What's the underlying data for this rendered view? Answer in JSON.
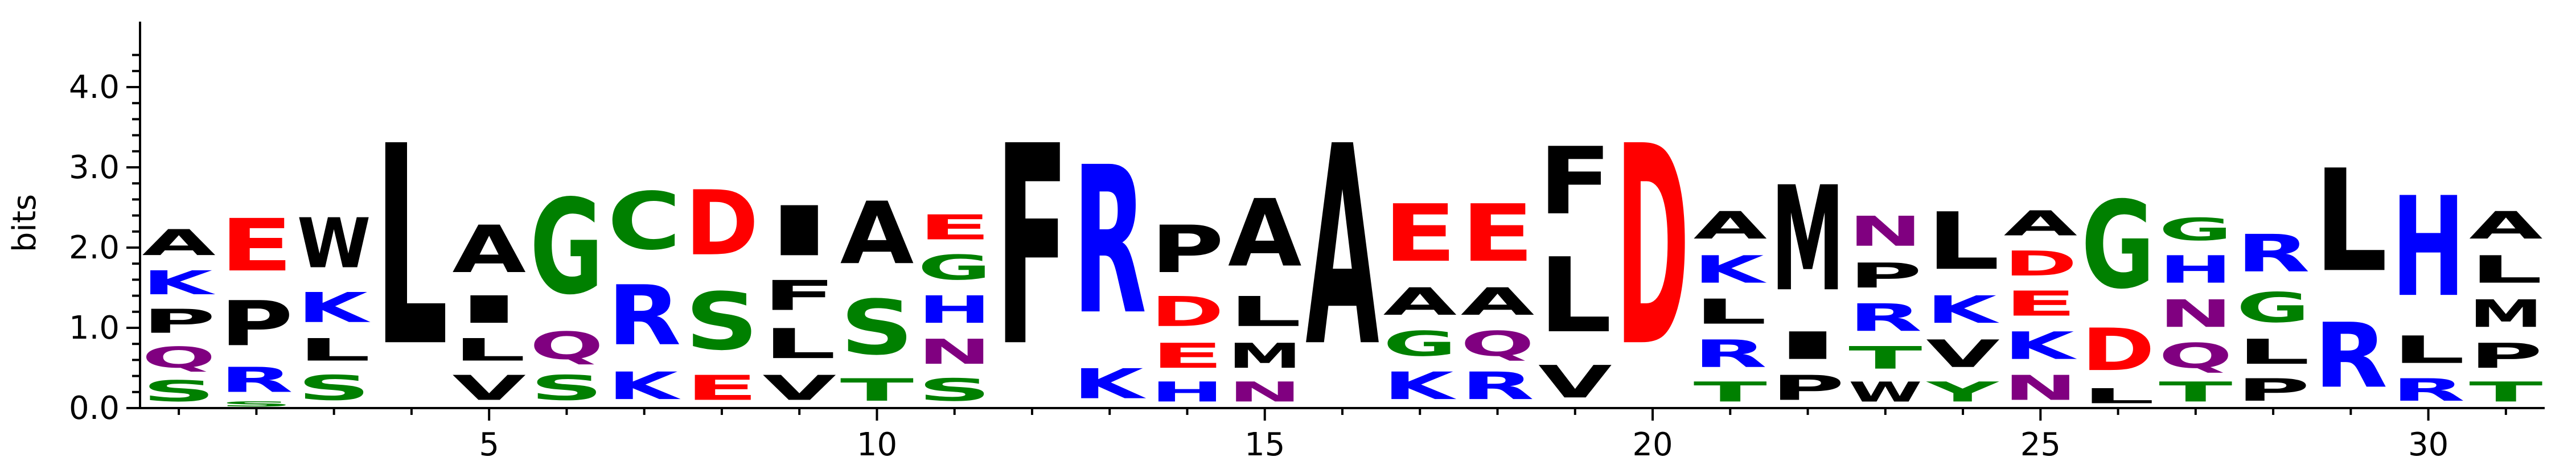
{
  "chart_data": {
    "type": "sequence-logo",
    "ylabel": "bits",
    "ylim": [
      0,
      4.4
    ],
    "xlim": [
      0.5,
      31.5
    ],
    "y_ticks": [
      0.0,
      1.0,
      2.0,
      3.0,
      4.0
    ],
    "y_tick_labels": [
      "0.0",
      "1.0",
      "2.0",
      "3.0",
      "4.0"
    ],
    "x_ticks": [
      5,
      10,
      15,
      20,
      25,
      30
    ],
    "x_tick_labels": [
      "5",
      "10",
      "15",
      "20",
      "25",
      "30"
    ],
    "colors": {
      "A": "#000000",
      "C": "#008000",
      "D": "#ff0000",
      "E": "#ff0000",
      "F": "#000000",
      "G": "#008000",
      "H": "#0000ff",
      "I": "#000000",
      "K": "#0000ff",
      "L": "#000000",
      "M": "#000000",
      "N": "#800080",
      "P": "#000000",
      "Q": "#800080",
      "R": "#0000ff",
      "S": "#008000",
      "T": "#008000",
      "V": "#000000",
      "W": "#000000",
      "Y": "#008000"
    },
    "positions": [
      {
        "position": 1,
        "stack": [
          {
            "letter": "S",
            "height": 0.42
          },
          {
            "letter": "Q",
            "height": 0.42
          },
          {
            "letter": "P",
            "height": 0.48
          },
          {
            "letter": "K",
            "height": 0.48
          },
          {
            "letter": "A",
            "height": 0.52
          }
        ]
      },
      {
        "position": 2,
        "stack": [
          {
            "letter": "S",
            "height": 0.1
          },
          {
            "letter": "R",
            "height": 0.5
          },
          {
            "letter": "P",
            "height": 0.9
          },
          {
            "letter": "E",
            "height": 1.05
          }
        ]
      },
      {
        "position": 3,
        "stack": [
          {
            "letter": "S",
            "height": 0.5
          },
          {
            "letter": "L",
            "height": 0.45
          },
          {
            "letter": "K",
            "height": 0.6
          },
          {
            "letter": "W",
            "height": 1.0
          }
        ]
      },
      {
        "position": 4,
        "stack": [
          {
            "letter": "L",
            "height": 4.0
          }
        ]
      },
      {
        "position": 5,
        "stack": [
          {
            "letter": "V",
            "height": 0.5
          },
          {
            "letter": "L",
            "height": 0.45
          },
          {
            "letter": "I",
            "height": 0.55
          },
          {
            "letter": "A",
            "height": 0.95
          }
        ]
      },
      {
        "position": 6,
        "stack": [
          {
            "letter": "S",
            "height": 0.5
          },
          {
            "letter": "Q",
            "height": 0.55
          },
          {
            "letter": "G",
            "height": 1.9
          }
        ]
      },
      {
        "position": 7,
        "stack": [
          {
            "letter": "K",
            "height": 0.55
          },
          {
            "letter": "R",
            "height": 1.2
          },
          {
            "letter": "C",
            "height": 1.15
          }
        ]
      },
      {
        "position": 8,
        "stack": [
          {
            "letter": "E",
            "height": 0.5
          },
          {
            "letter": "S",
            "height": 1.15
          },
          {
            "letter": "D",
            "height": 1.3
          }
        ]
      },
      {
        "position": 9,
        "stack": [
          {
            "letter": "V",
            "height": 0.5
          },
          {
            "letter": "L",
            "height": 0.6
          },
          {
            "letter": "F",
            "height": 0.6
          },
          {
            "letter": "I",
            "height": 1.0
          }
        ]
      },
      {
        "position": 10,
        "stack": [
          {
            "letter": "T",
            "height": 0.45
          },
          {
            "letter": "S",
            "height": 1.1
          },
          {
            "letter": "A",
            "height": 1.25
          }
        ]
      },
      {
        "position": 11,
        "stack": [
          {
            "letter": "S",
            "height": 0.45
          },
          {
            "letter": "N",
            "height": 0.5
          },
          {
            "letter": "H",
            "height": 0.55
          },
          {
            "letter": "G",
            "height": 0.5
          },
          {
            "letter": "E",
            "height": 0.5
          }
        ]
      },
      {
        "position": 12,
        "stack": [
          {
            "letter": "F",
            "height": 4.0
          }
        ]
      },
      {
        "position": 13,
        "stack": [
          {
            "letter": "K",
            "height": 0.6
          },
          {
            "letter": "R",
            "height": 2.95
          }
        ]
      },
      {
        "position": 14,
        "stack": [
          {
            "letter": "H",
            "height": 0.4
          },
          {
            "letter": "E",
            "height": 0.5
          },
          {
            "letter": "D",
            "height": 0.6
          },
          {
            "letter": "P",
            "height": 0.95
          }
        ]
      },
      {
        "position": 15,
        "stack": [
          {
            "letter": "N",
            "height": 0.4
          },
          {
            "letter": "M",
            "height": 0.5
          },
          {
            "letter": "L",
            "height": 0.6
          },
          {
            "letter": "A",
            "height": 1.35
          }
        ]
      },
      {
        "position": 16,
        "stack": [
          {
            "letter": "A",
            "height": 4.0
          }
        ]
      },
      {
        "position": 17,
        "stack": [
          {
            "letter": "K",
            "height": 0.55
          },
          {
            "letter": "G",
            "height": 0.5
          },
          {
            "letter": "A",
            "height": 0.55
          },
          {
            "letter": "E",
            "height": 1.15
          }
        ]
      },
      {
        "position": 18,
        "stack": [
          {
            "letter": "R",
            "height": 0.55
          },
          {
            "letter": "Q",
            "height": 0.5
          },
          {
            "letter": "A",
            "height": 0.55
          },
          {
            "letter": "E",
            "height": 1.15
          }
        ]
      },
      {
        "position": 19,
        "stack": [
          {
            "letter": "V",
            "height": 0.65
          },
          {
            "letter": "L",
            "height": 1.5
          },
          {
            "letter": "F",
            "height": 1.35
          }
        ]
      },
      {
        "position": 20,
        "stack": [
          {
            "letter": "D",
            "height": 4.0
          }
        ]
      },
      {
        "position": 21,
        "stack": [
          {
            "letter": "T",
            "height": 0.4
          },
          {
            "letter": "R",
            "height": 0.55
          },
          {
            "letter": "L",
            "height": 0.5
          },
          {
            "letter": "K",
            "height": 0.55
          },
          {
            "letter": "A",
            "height": 0.55
          }
        ]
      },
      {
        "position": 22,
        "stack": [
          {
            "letter": "P",
            "height": 0.5
          },
          {
            "letter": "I",
            "height": 0.55
          },
          {
            "letter": "M",
            "height": 2.1
          }
        ]
      },
      {
        "position": 23,
        "stack": [
          {
            "letter": "W",
            "height": 0.4
          },
          {
            "letter": "T",
            "height": 0.45
          },
          {
            "letter": "R",
            "height": 0.55
          },
          {
            "letter": "P",
            "height": 0.5
          },
          {
            "letter": "N",
            "height": 0.6
          }
        ]
      },
      {
        "position": 24,
        "stack": [
          {
            "letter": "Y",
            "height": 0.4
          },
          {
            "letter": "V",
            "height": 0.55
          },
          {
            "letter": "K",
            "height": 0.55
          },
          {
            "letter": "L",
            "height": 1.15
          }
        ]
      },
      {
        "position": 25,
        "stack": [
          {
            "letter": "N",
            "height": 0.5
          },
          {
            "letter": "K",
            "height": 0.55
          },
          {
            "letter": "E",
            "height": 0.5
          },
          {
            "letter": "D",
            "height": 0.5
          },
          {
            "letter": "A",
            "height": 0.5
          }
        ]
      },
      {
        "position": 26,
        "stack": [
          {
            "letter": "L",
            "height": 0.3
          },
          {
            "letter": "D",
            "height": 0.85
          },
          {
            "letter": "G",
            "height": 1.75
          }
        ]
      },
      {
        "position": 27,
        "stack": [
          {
            "letter": "T",
            "height": 0.4
          },
          {
            "letter": "Q",
            "height": 0.5
          },
          {
            "letter": "N",
            "height": 0.55
          },
          {
            "letter": "H",
            "height": 0.55
          },
          {
            "letter": "G",
            "height": 0.45
          }
        ]
      },
      {
        "position": 28,
        "stack": [
          {
            "letter": "P",
            "height": 0.45
          },
          {
            "letter": "L",
            "height": 0.5
          },
          {
            "letter": "G",
            "height": 0.6
          },
          {
            "letter": "R",
            "height": 0.75
          }
        ]
      },
      {
        "position": 29,
        "stack": [
          {
            "letter": "R",
            "height": 1.3
          },
          {
            "letter": "L",
            "height": 2.05
          }
        ]
      },
      {
        "position": 30,
        "stack": [
          {
            "letter": "R",
            "height": 0.45
          },
          {
            "letter": "L",
            "height": 0.55
          },
          {
            "letter": "H",
            "height": 2.0
          }
        ]
      },
      {
        "position": 31,
        "stack": [
          {
            "letter": "T",
            "height": 0.4
          },
          {
            "letter": "P",
            "height": 0.5
          },
          {
            "letter": "M",
            "height": 0.55
          },
          {
            "letter": "L",
            "height": 0.55
          },
          {
            "letter": "A",
            "height": 0.55
          }
        ]
      }
    ]
  }
}
